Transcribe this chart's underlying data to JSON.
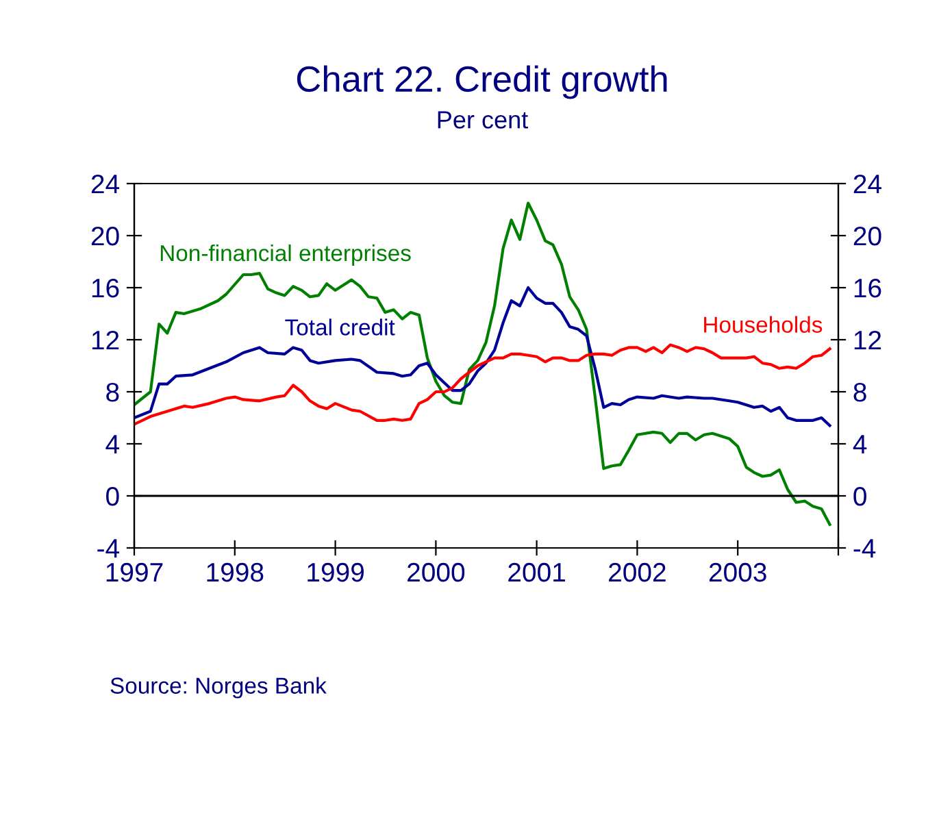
{
  "chart_data": {
    "type": "line",
    "title": "Chart 22. Credit growth",
    "subtitle": "Per cent",
    "xlim": [
      "1997-01",
      "2004-01"
    ],
    "xticks": [
      {
        "value": "1997-01",
        "label": "1997"
      },
      {
        "value": "1998-01",
        "label": "1998"
      },
      {
        "value": "1999-01",
        "label": "1999"
      },
      {
        "value": "2000-01",
        "label": "2000"
      },
      {
        "value": "2001-01",
        "label": "2001"
      },
      {
        "value": "2002-01",
        "label": "2002"
      },
      {
        "value": "2003-01",
        "label": "2003"
      },
      {
        "value": "2004-01",
        "label": null
      }
    ],
    "ylim": [
      -4,
      24
    ],
    "yticks": [
      -4,
      0,
      4,
      8,
      12,
      16,
      20,
      24
    ],
    "y2lim": [
      -4,
      24
    ],
    "y2ticks": [
      -4,
      0,
      4,
      8,
      12,
      16,
      20,
      24
    ],
    "ref_lines": [
      {
        "axis": "y",
        "value": 0,
        "color": "#000000"
      }
    ],
    "grid": false,
    "legend": false,
    "marker": "none",
    "line_style": "solid",
    "annotations": [
      "Source: Norges Bank"
    ],
    "series": [
      {
        "name": "Non-financial enterprises",
        "color": "#008000",
        "x": [
          "1997-01",
          "1997-03",
          "1997-04",
          "1997-05",
          "1997-06",
          "1997-07",
          "1997-09",
          "1997-11",
          "1997-12",
          "1998-02",
          "1998-03",
          "1998-04",
          "1998-05",
          "1998-06",
          "1998-07",
          "1998-08",
          "1998-09",
          "1998-10",
          "1998-11",
          "1998-12",
          "1999-01",
          "1999-03",
          "1999-04",
          "1999-05",
          "1999-06",
          "1999-07",
          "1999-08",
          "1999-09",
          "1999-10",
          "1999-11",
          "1999-12",
          "2000-01",
          "2000-02",
          "2000-03",
          "2000-04",
          "2000-05",
          "2000-06",
          "2000-07",
          "2000-08",
          "2000-09",
          "2000-10",
          "2000-11",
          "2000-12",
          "2001-01",
          "2001-02",
          "2001-03",
          "2001-04",
          "2001-05",
          "2001-06",
          "2001-07",
          "2001-08",
          "2001-09",
          "2001-10",
          "2001-11",
          "2001-12",
          "2002-01",
          "2002-03",
          "2002-04",
          "2002-05",
          "2002-06",
          "2002-07",
          "2002-08",
          "2002-09",
          "2002-10",
          "2002-12",
          "2003-01",
          "2003-02",
          "2003-03",
          "2003-04",
          "2003-05",
          "2003-06",
          "2003-07",
          "2003-08",
          "2003-09",
          "2003-10",
          "2003-11",
          "2003-12"
        ],
        "values": [
          7.0,
          8.0,
          13.2,
          12.5,
          14.1,
          14.0,
          14.4,
          15.0,
          15.5,
          17.0,
          17.0,
          17.1,
          15.9,
          15.6,
          15.4,
          16.1,
          15.8,
          15.3,
          15.4,
          16.3,
          15.8,
          16.6,
          16.1,
          15.3,
          15.2,
          14.1,
          14.3,
          13.6,
          14.1,
          13.9,
          10.6,
          8.8,
          7.7,
          7.2,
          7.1,
          9.7,
          10.4,
          11.8,
          14.6,
          19.0,
          21.2,
          19.7,
          22.5,
          21.2,
          19.6,
          19.3,
          17.8,
          15.3,
          14.3,
          12.8,
          7.6,
          2.1,
          2.3,
          2.4,
          3.5,
          4.7,
          4.9,
          4.8,
          4.1,
          4.8,
          4.8,
          4.3,
          4.7,
          4.8,
          4.4,
          3.8,
          2.2,
          1.8,
          1.5,
          1.6,
          2.0,
          0.5,
          -0.5,
          -0.4,
          -0.8,
          -1.0,
          -2.2
        ]
      },
      {
        "name": "Total credit",
        "color": "#000099",
        "x": [
          "1997-01",
          "1997-03",
          "1997-04",
          "1997-05",
          "1997-06",
          "1997-08",
          "1997-10",
          "1997-12",
          "1998-02",
          "1998-04",
          "1998-05",
          "1998-07",
          "1998-08",
          "1998-09",
          "1998-10",
          "1998-11",
          "1999-01",
          "1999-03",
          "1999-04",
          "1999-06",
          "1999-08",
          "1999-09",
          "1999-10",
          "1999-11",
          "1999-12",
          "2000-01",
          "2000-03",
          "2000-04",
          "2000-05",
          "2000-06",
          "2000-07",
          "2000-08",
          "2000-09",
          "2000-10",
          "2000-11",
          "2000-12",
          "2001-01",
          "2001-02",
          "2001-03",
          "2001-04",
          "2001-05",
          "2001-06",
          "2001-07",
          "2001-08",
          "2001-09",
          "2001-10",
          "2001-11",
          "2001-12",
          "2002-01",
          "2002-03",
          "2002-04",
          "2002-06",
          "2002-07",
          "2002-09",
          "2002-10",
          "2002-12",
          "2003-01",
          "2003-03",
          "2003-04",
          "2003-05",
          "2003-06",
          "2003-07",
          "2003-08",
          "2003-10",
          "2003-11",
          "2003-12"
        ],
        "values": [
          6.0,
          6.5,
          8.6,
          8.6,
          9.2,
          9.3,
          9.8,
          10.3,
          11.0,
          11.4,
          11.0,
          10.9,
          11.4,
          11.2,
          10.4,
          10.2,
          10.4,
          10.5,
          10.4,
          9.5,
          9.4,
          9.2,
          9.3,
          10.0,
          10.2,
          9.3,
          8.1,
          8.1,
          8.6,
          9.6,
          10.2,
          11.2,
          13.3,
          15.0,
          14.6,
          16.0,
          15.2,
          14.8,
          14.8,
          14.1,
          13.0,
          12.8,
          12.3,
          9.8,
          6.8,
          7.1,
          7.0,
          7.4,
          7.6,
          7.5,
          7.7,
          7.5,
          7.6,
          7.5,
          7.5,
          7.3,
          7.2,
          6.8,
          6.9,
          6.5,
          6.8,
          6.0,
          5.8,
          5.8,
          6.0,
          5.4
        ]
      },
      {
        "name": "Households",
        "color": "#ff0000",
        "x": [
          "1997-01",
          "1997-03",
          "1997-05",
          "1997-07",
          "1997-08",
          "1997-10",
          "1997-12",
          "1998-01",
          "1998-02",
          "1998-04",
          "1998-06",
          "1998-07",
          "1998-08",
          "1998-09",
          "1998-10",
          "1998-11",
          "1998-12",
          "1999-01",
          "1999-03",
          "1999-04",
          "1999-06",
          "1999-07",
          "1999-08",
          "1999-09",
          "1999-10",
          "1999-11",
          "1999-12",
          "2000-01",
          "2000-02",
          "2000-03",
          "2000-04",
          "2000-05",
          "2000-06",
          "2000-07",
          "2000-08",
          "2000-09",
          "2000-10",
          "2000-11",
          "2000-12",
          "2001-01",
          "2001-02",
          "2001-03",
          "2001-04",
          "2001-05",
          "2001-06",
          "2001-07",
          "2001-08",
          "2001-09",
          "2001-10",
          "2001-11",
          "2001-12",
          "2002-01",
          "2002-02",
          "2002-03",
          "2002-04",
          "2002-05",
          "2002-06",
          "2002-07",
          "2002-08",
          "2002-09",
          "2002-10",
          "2002-11",
          "2002-12",
          "2003-01",
          "2003-02",
          "2003-03",
          "2003-04",
          "2003-05",
          "2003-06",
          "2003-07",
          "2003-08",
          "2003-09",
          "2003-10",
          "2003-11",
          "2003-12"
        ],
        "values": [
          5.5,
          6.1,
          6.5,
          6.9,
          6.8,
          7.1,
          7.5,
          7.6,
          7.4,
          7.3,
          7.6,
          7.7,
          8.5,
          8.0,
          7.3,
          6.9,
          6.7,
          7.1,
          6.6,
          6.5,
          5.8,
          5.8,
          5.9,
          5.8,
          5.9,
          7.1,
          7.4,
          8.0,
          8.0,
          8.3,
          9.0,
          9.5,
          10.0,
          10.3,
          10.6,
          10.6,
          10.9,
          10.9,
          10.8,
          10.7,
          10.3,
          10.6,
          10.6,
          10.4,
          10.4,
          10.8,
          10.9,
          10.9,
          10.8,
          11.2,
          11.4,
          11.4,
          11.1,
          11.4,
          11.0,
          11.6,
          11.4,
          11.1,
          11.4,
          11.3,
          11.0,
          10.6,
          10.6,
          10.6,
          10.6,
          10.7,
          10.2,
          10.1,
          9.8,
          9.9,
          9.8,
          10.2,
          10.7,
          10.8,
          11.3
        ]
      }
    ]
  }
}
